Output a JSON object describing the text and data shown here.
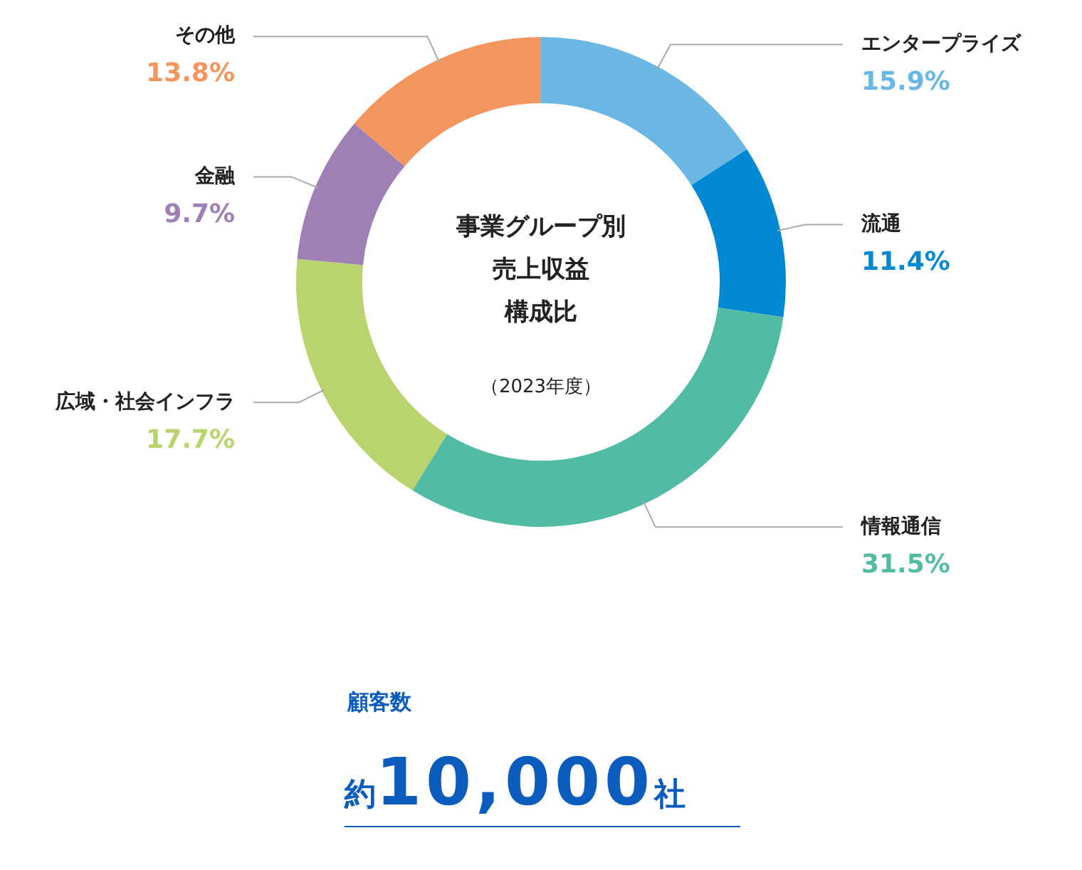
{
  "chart_data": {
    "type": "donut",
    "title": "事業グループ別",
    "subtitle": "（2023年度）",
    "categories": [
      "エンタープライズ",
      "流通",
      "情報通信",
      "広域・社会インフラ",
      "金融",
      "その他"
    ],
    "values": [
      15.9,
      11.4,
      31.5,
      17.7,
      9.7,
      13.8
    ],
    "value_labels": [
      "15.9%",
      "11.4%",
      "31.5%",
      "17.7%",
      "9.7%",
      "13.8%"
    ],
    "colors": [
      "#6ab7e4",
      "#0089d2",
      "#52bba3",
      "#b9d36f",
      "#9e80b5",
      "#f2955e"
    ],
    "legend": false,
    "annotations": [
      "売上収益",
      "構成比",
      "顧客数",
      "約10,000社"
    ]
  }
}
